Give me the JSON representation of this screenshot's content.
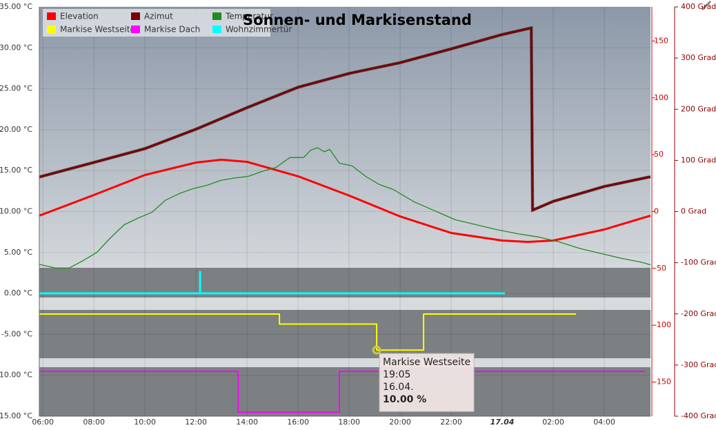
{
  "chart_data": {
    "type": "line",
    "title": "Sonnen- und Markisenstand",
    "xlim": [
      5.86,
      29.81
    ],
    "xticks": [
      {
        "value": 6,
        "label": "06:00"
      },
      {
        "value": 8,
        "label": "08:00"
      },
      {
        "value": 10,
        "label": "10:00"
      },
      {
        "value": 12,
        "label": "12:00"
      },
      {
        "value": 14,
        "label": "14:00"
      },
      {
        "value": 16,
        "label": "16:00"
      },
      {
        "value": 18,
        "label": "18:00"
      },
      {
        "value": 20,
        "label": "20:00"
      },
      {
        "value": 22,
        "label": "22:00"
      },
      {
        "value": 24,
        "label": "17.04"
      },
      {
        "value": 26,
        "label": "02:00"
      },
      {
        "value": 28,
        "label": "04:00"
      }
    ],
    "ylim": [
      -15,
      35
    ],
    "yticks": [
      {
        "value": 35,
        "label": "35.00 °C"
      },
      {
        "value": 30,
        "label": "30.00 °C"
      },
      {
        "value": 25,
        "label": "25.00 °C"
      },
      {
        "value": 20,
        "label": "20.00 °C"
      },
      {
        "value": 15,
        "label": "15.00 °C"
      },
      {
        "value": 10,
        "label": "10.00 °C"
      },
      {
        "value": 5,
        "label": "5.00 °C"
      },
      {
        "value": 0,
        "label": "0.00 °C"
      },
      {
        "value": -5,
        "label": "-5.00 °C"
      },
      {
        "value": -10,
        "label": "-10.00 °C"
      },
      {
        "value": -15,
        "label": "-15.00 °C"
      }
    ],
    "y2lim": [
      -180,
      180
    ],
    "y2ticks": [
      150,
      100,
      50,
      0,
      -50,
      -100,
      -150
    ],
    "y3lim": [
      -400,
      400
    ],
    "y3ticks": [
      {
        "value": 400,
        "label": "400 Grad"
      },
      {
        "value": 300,
        "label": "300 Grad"
      },
      {
        "value": 200,
        "label": "200 Grad"
      },
      {
        "value": 100,
        "label": "100 Grad"
      },
      {
        "value": 0,
        "label": "0 Grad"
      },
      {
        "value": -100,
        "label": "-100 Grad"
      },
      {
        "value": -200,
        "label": "-200 Grad"
      },
      {
        "value": -300,
        "label": "-300 Grad"
      },
      {
        "value": -400,
        "label": "-400 Grad"
      }
    ],
    "y4lim": [
      0,
      100
    ],
    "y5lim": [
      0,
      1
    ],
    "grid": true,
    "legend": "top-left",
    "series": [
      {
        "name": "Elevation",
        "color": "#ff0000",
        "axis": "y2",
        "x": [
          5.86,
          6,
          8,
          10,
          12,
          13,
          14,
          16,
          18,
          20,
          22,
          24,
          25,
          26,
          28,
          29.81
        ],
        "values": [
          -3.6,
          -2.4,
          14.6,
          32.2,
          43.1,
          45.6,
          43.7,
          31,
          14,
          -4.3,
          -18.8,
          -25.5,
          -26.7,
          -25.5,
          -15.8,
          -3.6
        ]
      },
      {
        "name": "Azimut",
        "color": "#7a0000",
        "axis": "y3",
        "x": [
          5.86,
          8,
          10,
          12,
          14,
          16,
          18,
          20,
          22,
          24,
          25.14,
          25.19,
          26,
          28,
          29.81
        ],
        "values": [
          67.6,
          96,
          123,
          161,
          203,
          243,
          270,
          291,
          318,
          346,
          359,
          2.7,
          20,
          49,
          68
        ]
      },
      {
        "name": "Temperatur",
        "color": "#228b22",
        "axis": "y",
        "x": [
          5.86,
          6.49,
          7.03,
          7.57,
          8.11,
          8.65,
          9.19,
          9.73,
          10.27,
          10.81,
          11.35,
          11.89,
          12.43,
          12.97,
          13.51,
          14.05,
          14.59,
          15.14,
          15.68,
          16.22,
          16.49,
          16.76,
          17.03,
          17.24,
          17.62,
          18.11,
          18.65,
          19.19,
          19.73,
          20.54,
          21.35,
          22.16,
          22.97,
          23.78,
          24.59,
          25.41,
          26.22,
          27.03,
          27.84,
          28.65,
          29.46,
          29.81
        ],
        "values": [
          3.55,
          3.1,
          3.1,
          4,
          5,
          6.8,
          8.4,
          9.2,
          9.9,
          11.4,
          12.2,
          12.8,
          13.2,
          13.8,
          14.1,
          14.3,
          14.9,
          15.4,
          16.6,
          16.6,
          17.5,
          17.8,
          17.3,
          17.6,
          15.9,
          15.6,
          14.3,
          13.3,
          12.7,
          11.2,
          10.1,
          9,
          8.4,
          7.8,
          7.3,
          6.9,
          6.3,
          5.5,
          4.9,
          4.3,
          3.8,
          3.5
        ]
      },
      {
        "name": "Markise Westseite",
        "color": "#ffff00",
        "axis": "y4",
        "x": [
          5.86,
          15.27,
          15.27,
          19.08,
          19.08,
          20.92,
          20.92,
          26.89
        ],
        "values": [
          100,
          100,
          75,
          75,
          10,
          10,
          100,
          100
        ]
      },
      {
        "name": "Markise Dach",
        "color": "#ff00ff",
        "axis": "y4",
        "x": [
          5.86,
          13.65,
          13.65,
          17.62,
          17.62,
          29.59
        ],
        "values": [
          100,
          100,
          0,
          0,
          100,
          100
        ]
      },
      {
        "name": "Wohnzimmertür",
        "color": "#00ffff",
        "axis": "y5",
        "x": [
          5.86,
          12.16,
          12.16,
          12.16,
          24.11
        ],
        "values": [
          0,
          0,
          1,
          0,
          0
        ]
      }
    ],
    "tooltip": {
      "series": "Markise Westseite",
      "x": 19.08,
      "time": "19:05",
      "date": "16.04.",
      "value": {
        "value": 10,
        "label": "10.00 %"
      }
    }
  }
}
